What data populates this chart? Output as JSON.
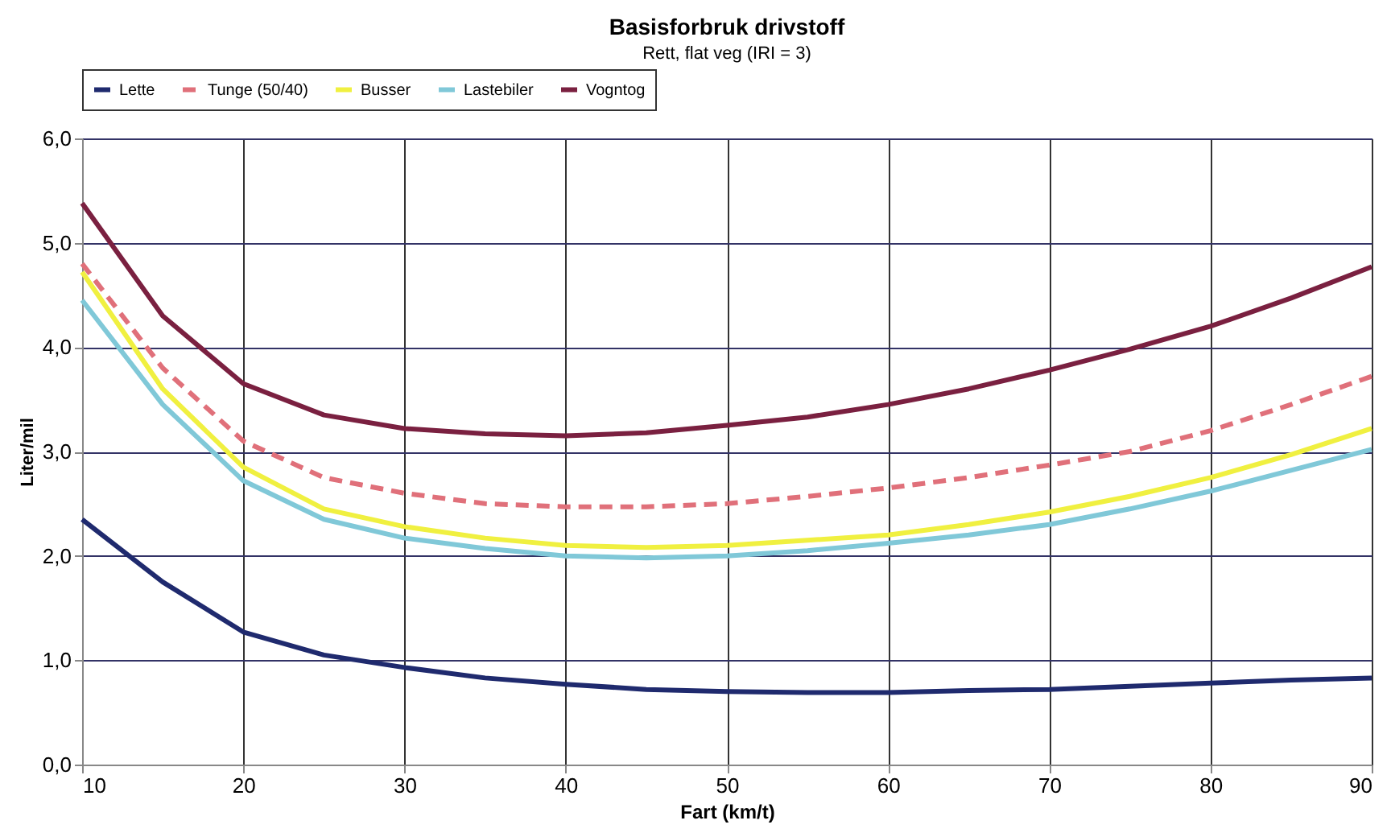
{
  "chart_data": {
    "type": "line",
    "title": "Basisforbruk drivstoff",
    "subtitle": "Rett, flat veg (IRI = 3)",
    "xlabel": "Fart (km/t)",
    "ylabel": "Liter/mil",
    "x": [
      10,
      15,
      20,
      25,
      30,
      35,
      40,
      45,
      50,
      55,
      60,
      65,
      70,
      75,
      80,
      85,
      90
    ],
    "series": [
      {
        "name": "Lette",
        "color": "#1f2a6e",
        "line_style": "solid",
        "values": [
          2.35,
          1.75,
          1.27,
          1.05,
          0.93,
          0.83,
          0.77,
          0.72,
          0.7,
          0.69,
          0.69,
          0.71,
          0.72,
          0.75,
          0.78,
          0.81,
          0.83
        ]
      },
      {
        "name": "Tunge (50/40)",
        "color": "#e0707a",
        "line_style": "dashed",
        "values": [
          4.8,
          3.8,
          3.1,
          2.75,
          2.6,
          2.5,
          2.47,
          2.47,
          2.5,
          2.57,
          2.65,
          2.75,
          2.87,
          3.0,
          3.2,
          3.45,
          3.72
        ]
      },
      {
        "name": "Busser",
        "color": "#f0f040",
        "line_style": "solid",
        "values": [
          4.72,
          3.6,
          2.85,
          2.45,
          2.28,
          2.17,
          2.1,
          2.08,
          2.1,
          2.15,
          2.2,
          2.3,
          2.42,
          2.57,
          2.75,
          2.97,
          3.22
        ]
      },
      {
        "name": "Lastebiler",
        "color": "#80c8d8",
        "line_style": "solid",
        "values": [
          4.45,
          3.45,
          2.72,
          2.35,
          2.17,
          2.07,
          2.0,
          1.98,
          2.0,
          2.05,
          2.12,
          2.2,
          2.3,
          2.45,
          2.62,
          2.82,
          3.02
        ]
      },
      {
        "name": "Vogntog",
        "color": "#7a2040",
        "line_style": "solid",
        "values": [
          5.38,
          4.3,
          3.65,
          3.35,
          3.22,
          3.17,
          3.15,
          3.18,
          3.25,
          3.33,
          3.45,
          3.6,
          3.78,
          3.98,
          4.2,
          4.47,
          4.77
        ]
      }
    ],
    "xlim": [
      10,
      90
    ],
    "xticks": [
      10,
      20,
      30,
      40,
      50,
      60,
      70,
      80,
      90
    ],
    "ylim": [
      0,
      6
    ],
    "yticks": [
      {
        "value": 0,
        "label": "0,0"
      },
      {
        "value": 1,
        "label": "1,0"
      },
      {
        "value": 2,
        "label": "2,0"
      },
      {
        "value": 3,
        "label": "3,0"
      },
      {
        "value": 4,
        "label": "4,0"
      },
      {
        "value": 5,
        "label": "5,0"
      },
      {
        "value": 6,
        "label": "6,0"
      }
    ],
    "grid": true,
    "legend": "top",
    "marker": "none"
  }
}
